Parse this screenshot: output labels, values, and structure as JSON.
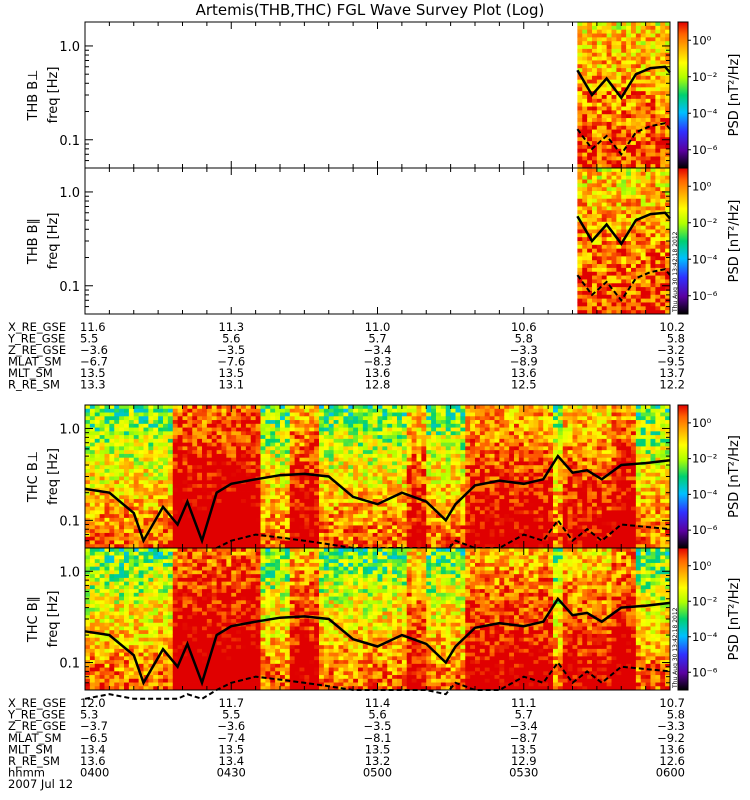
{
  "title": "Artemis(THB,THC) FGL Wave Survey Plot (Log)",
  "colors": {
    "solid_line": "#000000",
    "dashed_line": "#000000",
    "colormap": [
      "#000000",
      "#5a00a0",
      "#3030ff",
      "#00c0ff",
      "#00d070",
      "#b0ff00",
      "#ffff00",
      "#ffb000",
      "#ff6000",
      "#e00000"
    ]
  },
  "colorbar": {
    "label": "PSD [nT²/Hz]",
    "tick_labels": [
      "10⁰",
      "10⁻²",
      "10⁻⁴",
      "10⁻⁶"
    ],
    "tick_values": [
      0,
      -2,
      -4,
      -6
    ],
    "range_log10": [
      -7,
      1
    ]
  },
  "timestamp_stamp": "Thu Aug 30 13:42:18 2012",
  "panels": [
    {
      "label": "THB B⊥",
      "ylabel": "freq [Hz]",
      "ytick_labels": [
        "1.0",
        "0.1"
      ],
      "probe": "THB",
      "comp": "perp"
    },
    {
      "label": "THB B∥",
      "ylabel": "freq [Hz]",
      "ytick_labels": [
        "1.0",
        "0.1"
      ],
      "probe": "THB",
      "comp": "par"
    },
    {
      "label": "THC B⊥",
      "ylabel": "freq [Hz]",
      "ytick_labels": [
        "1.0",
        "0.1"
      ],
      "probe": "THC",
      "comp": "perp"
    },
    {
      "label": "THC B∥",
      "ylabel": "freq [Hz]",
      "ytick_labels": [
        "1.0",
        "0.1"
      ],
      "probe": "THC",
      "comp": "par"
    }
  ],
  "thb_ephem": {
    "row_labels": [
      "X_RE_GSE",
      "Y_RE_GSE",
      "Z_RE_GSE",
      "MLAT_SM",
      "MLT_SM",
      "R_RE_SM"
    ],
    "columns": [
      [
        "11.6",
        "5.5",
        "−3.6",
        "−6.7",
        "13.5",
        "13.3"
      ],
      [
        "11.3",
        "5.6",
        "−3.5",
        "−7.6",
        "13.5",
        "13.1"
      ],
      [
        "11.0",
        "5.7",
        "−3.4",
        "−8.3",
        "13.6",
        "12.8"
      ],
      [
        "10.6",
        "5.8",
        "−3.3",
        "−8.9",
        "13.6",
        "12.5"
      ],
      [
        "10.2",
        "5.8",
        "−3.2",
        "−9.5",
        "13.7",
        "12.2"
      ]
    ]
  },
  "thc_ephem": {
    "row_labels": [
      "X_RE_GSE",
      "Y_RE_GSE",
      "Z_RE_GSE",
      "MLAT_SM",
      "MLT_SM",
      "R_RE_SM",
      "hhmm"
    ],
    "columns": [
      [
        "12.0",
        "5.3",
        "−3.7",
        "−6.5",
        "13.4",
        "13.6",
        "0400"
      ],
      [
        "11.7",
        "5.5",
        "−3.6",
        "−7.4",
        "13.5",
        "13.4",
        "0430"
      ],
      [
        "11.4",
        "5.6",
        "−3.5",
        "−8.1",
        "13.5",
        "13.2",
        "0500"
      ],
      [
        "11.1",
        "5.7",
        "−3.4",
        "−8.7",
        "13.5",
        "12.9",
        "0530"
      ],
      [
        "10.7",
        "5.8",
        "−3.3",
        "−9.2",
        "13.6",
        "12.6",
        "0600"
      ]
    ],
    "date": "2007 Jul 12"
  },
  "chart_data": {
    "type": "heatmap",
    "title": "Artemis(THB,THC) FGL Wave Survey Plot (Log)",
    "x_time_range": [
      "04:00",
      "06:00"
    ],
    "y_range_hz": [
      0.05,
      1.8
    ],
    "y_scale": "log",
    "z_label": "PSD [nT²/Hz]",
    "z_range_log10": [
      -7,
      1
    ],
    "thb_data_start": "05:41",
    "curves_thb": {
      "times": [
        "05:41",
        "05:44",
        "05:47",
        "05:50",
        "05:53",
        "05:56",
        "05:59",
        "06:00"
      ],
      "solid_hz": [
        0.55,
        0.3,
        0.45,
        0.28,
        0.5,
        0.58,
        0.6,
        0.52
      ],
      "dashed_hz": [
        0.13,
        0.08,
        0.11,
        0.07,
        0.12,
        0.14,
        0.15,
        0.13
      ]
    },
    "curves_thc": {
      "times": [
        "04:00",
        "04:05",
        "04:10",
        "04:12",
        "04:16",
        "04:19",
        "04:21",
        "04:24",
        "04:27",
        "04:30",
        "04:35",
        "04:40",
        "04:45",
        "04:50",
        "04:55",
        "05:00",
        "05:05",
        "05:10",
        "05:14",
        "05:16",
        "05:20",
        "05:25",
        "05:30",
        "05:34",
        "05:37",
        "05:40",
        "05:43",
        "05:46",
        "05:50",
        "05:55",
        "06:00"
      ],
      "solid_hz": [
        0.22,
        0.2,
        0.12,
        0.06,
        0.14,
        0.09,
        0.16,
        0.06,
        0.2,
        0.25,
        0.28,
        0.31,
        0.32,
        0.3,
        0.18,
        0.15,
        0.2,
        0.16,
        0.1,
        0.15,
        0.24,
        0.27,
        0.25,
        0.28,
        0.5,
        0.33,
        0.35,
        0.28,
        0.4,
        0.42,
        0.45
      ],
      "dashed_hz": [
        0.04,
        0.045,
        0.04,
        0.04,
        0.04,
        0.04,
        0.045,
        0.04,
        0.05,
        0.06,
        0.07,
        0.065,
        0.06,
        0.055,
        0.05,
        0.05,
        0.05,
        0.05,
        0.045,
        0.06,
        0.05,
        0.05,
        0.07,
        0.06,
        0.1,
        0.06,
        0.08,
        0.06,
        0.09,
        0.085,
        0.08
      ]
    }
  }
}
